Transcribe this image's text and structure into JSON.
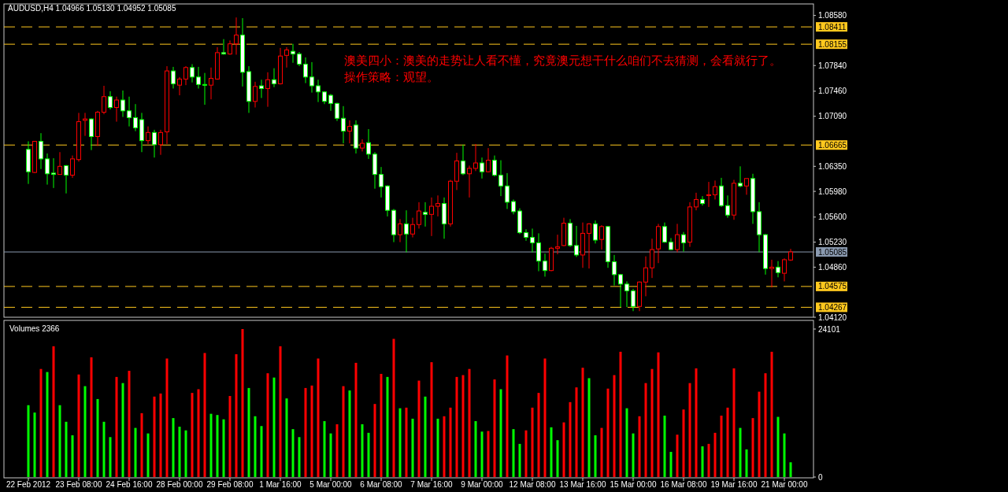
{
  "chart_data": [
    {
      "type": "candlestick",
      "title": "AUDUSD,H4 1.04966 1.05130 1.04952 1.05085",
      "annotations": [
        "澳美四小：澳美的走势让人看不懂，究竟澳元想干什么咱们不去猜测，会看就行了。",
        "操作策略：观望。"
      ],
      "categories": [
        null,
        null,
        null,
        null,
        null,
        null,
        null,
        null,
        null,
        null,
        null,
        null,
        null,
        null,
        null,
        null,
        null,
        null,
        null,
        null,
        null,
        null,
        null,
        null,
        null,
        null,
        null,
        null,
        null,
        null,
        null,
        null,
        null,
        null,
        null,
        null,
        null,
        null,
        null,
        null,
        null,
        null,
        null,
        null,
        null,
        null,
        null,
        null,
        null,
        null,
        null,
        null,
        null,
        null,
        null,
        null,
        null,
        null,
        null,
        null,
        null,
        null,
        null,
        null,
        null,
        null,
        null,
        null,
        null,
        null,
        null,
        null,
        null,
        null,
        null,
        null,
        null,
        null,
        null,
        null,
        null,
        null,
        null,
        null,
        null,
        null,
        null,
        null,
        null,
        null,
        null,
        null,
        null,
        null,
        null,
        null,
        null,
        null,
        null,
        null,
        null,
        null,
        null,
        null,
        null,
        null,
        null,
        null,
        null,
        null,
        null,
        null,
        null,
        null,
        null,
        null,
        null,
        null,
        null,
        null,
        null,
        null
      ],
      "tick_labels": "y",
      "ylim": [
        1.0412,
        1.0875
      ],
      "yticks": [
        {
          "value": 1.0858,
          "label": "1.08580"
        },
        {
          "value": 1.0784,
          "label": "1.07840"
        },
        {
          "value": 1.0746,
          "label": "1.07460"
        },
        {
          "value": 1.0709,
          "label": "1.07090"
        },
        {
          "value": 1.0635,
          "label": "1.06350"
        },
        {
          "value": 1.0598,
          "label": "1.05980"
        },
        {
          "value": 1.056,
          "label": "1.05600"
        },
        {
          "value": 1.0523,
          "label": "1.05230"
        },
        {
          "value": 1.0486,
          "label": "1.04860"
        },
        {
          "value": 1.0412,
          "label": "1.04120"
        }
      ],
      "ref_lines": [
        {
          "axis": "y",
          "value": 1.08411,
          "label": "1.08411",
          "color": "#ffc81e",
          "line_style": "dashed"
        },
        {
          "axis": "y",
          "value": 1.08155,
          "label": "1.08155",
          "color": "#ffc81e",
          "line_style": "dashed"
        },
        {
          "axis": "y",
          "value": 1.06665,
          "label": "1.06665",
          "color": "#ffc81e",
          "line_style": "dashed"
        },
        {
          "axis": "y",
          "value": 1.05085,
          "label": "1.05085",
          "color": "#8a9ab0",
          "line_style": "solid"
        },
        {
          "axis": "y",
          "value": 1.04575,
          "label": "1.04575",
          "color": "#ffc81e",
          "line_style": "dashed"
        },
        {
          "axis": "y",
          "value": 1.04267,
          "label": "1.04267",
          "color": "#ffc81e",
          "line_style": "dashed"
        }
      ],
      "ohlc": [
        [
          1.066,
          1.0672,
          1.0609,
          1.0627
        ],
        [
          1.0626,
          1.0672,
          1.0625,
          1.0672
        ],
        [
          1.0672,
          1.0684,
          1.0631,
          1.0646
        ],
        [
          1.0646,
          1.0654,
          1.0608,
          1.0624
        ],
        [
          1.0625,
          1.0647,
          1.0603,
          1.0623
        ],
        [
          1.0623,
          1.0656,
          1.0623,
          1.0635
        ],
        [
          1.0636,
          1.0637,
          1.0595,
          1.0622
        ],
        [
          1.0622,
          1.0651,
          1.0618,
          1.0646
        ],
        [
          1.0645,
          1.0714,
          1.0642,
          1.0701
        ],
        [
          1.0703,
          1.0714,
          1.068,
          1.0705
        ],
        [
          1.0705,
          1.0706,
          1.0659,
          1.0679
        ],
        [
          1.0679,
          1.0717,
          1.0665,
          1.0715
        ],
        [
          1.0715,
          1.0754,
          1.0712,
          1.0738
        ],
        [
          1.0738,
          1.0746,
          1.0719,
          1.0722
        ],
        [
          1.0722,
          1.0738,
          1.0701,
          1.0733
        ],
        [
          1.0733,
          1.0747,
          1.0708,
          1.0717
        ],
        [
          1.0717,
          1.0738,
          1.0694,
          1.0707
        ],
        [
          1.0707,
          1.0727,
          1.0687,
          1.0692
        ],
        [
          1.0704,
          1.0714,
          1.0656,
          1.0673
        ],
        [
          1.0673,
          1.0694,
          1.0668,
          1.0685
        ],
        [
          1.0685,
          1.0689,
          1.0648,
          1.0667
        ],
        [
          1.0667,
          1.0689,
          1.0652,
          1.0685
        ],
        [
          1.0686,
          1.0783,
          1.0668,
          1.0776
        ],
        [
          1.0776,
          1.0782,
          1.075,
          1.0757
        ],
        [
          1.0755,
          1.0767,
          1.074,
          1.0764
        ],
        [
          1.0764,
          1.0783,
          1.0755,
          1.0781
        ],
        [
          1.0781,
          1.0786,
          1.0759,
          1.0767
        ],
        [
          1.0767,
          1.0782,
          1.075,
          1.0756
        ],
        [
          1.0756,
          1.0773,
          1.0726,
          1.0755
        ],
        [
          1.0755,
          1.0781,
          1.0734,
          1.0765
        ],
        [
          1.0764,
          1.0811,
          1.0763,
          1.0803
        ],
        [
          1.0803,
          1.0823,
          1.08,
          1.0801
        ],
        [
          1.0801,
          1.0821,
          1.08,
          1.0816
        ],
        [
          1.0816,
          1.0855,
          1.08,
          1.0829
        ],
        [
          1.0829,
          1.0854,
          1.0753,
          1.0774
        ],
        [
          1.0775,
          1.0783,
          1.0714,
          1.0731
        ],
        [
          1.0731,
          1.076,
          1.0722,
          1.0753
        ],
        [
          1.0754,
          1.0763,
          1.0736,
          1.075
        ],
        [
          1.075,
          1.0774,
          1.0723,
          1.0763
        ],
        [
          1.0763,
          1.078,
          1.0752,
          1.0757
        ],
        [
          1.0757,
          1.081,
          1.0756,
          1.0798
        ],
        [
          1.0799,
          1.0811,
          1.0781,
          1.0807
        ],
        [
          1.0805,
          1.0816,
          1.0788,
          1.0801
        ],
        [
          1.0801,
          1.0804,
          1.0783,
          1.0786
        ],
        [
          1.0786,
          1.0796,
          1.0758,
          1.0767
        ],
        [
          1.0767,
          1.0789,
          1.0744,
          1.0754
        ],
        [
          1.0754,
          1.0763,
          1.073,
          1.0745
        ],
        [
          1.0745,
          1.0746,
          1.0727,
          1.0731
        ],
        [
          1.074,
          1.0742,
          1.0717,
          1.0728
        ],
        [
          1.0728,
          1.0729,
          1.0702,
          1.0706
        ],
        [
          1.0706,
          1.0724,
          1.0669,
          1.0687
        ],
        [
          1.0687,
          1.0703,
          1.0669,
          1.0694
        ],
        [
          1.0696,
          1.0703,
          1.0654,
          1.0662
        ],
        [
          1.0662,
          1.0675,
          1.0657,
          1.0669
        ],
        [
          1.067,
          1.069,
          1.0646,
          1.0653
        ],
        [
          1.0653,
          1.0656,
          1.0602,
          1.0623
        ],
        [
          1.0623,
          1.0634,
          1.0589,
          1.0605
        ],
        [
          1.0606,
          1.0607,
          1.0561,
          1.057
        ],
        [
          1.057,
          1.0572,
          1.0523,
          1.0534
        ],
        [
          1.0534,
          1.0557,
          1.0523,
          1.055
        ],
        [
          1.055,
          1.057,
          1.0508,
          1.0535
        ],
        [
          1.0535,
          1.0559,
          1.053,
          1.0549
        ],
        [
          1.0549,
          1.0582,
          1.0543,
          1.0569
        ],
        [
          1.0567,
          1.0582,
          1.0546,
          1.0564
        ],
        [
          1.0564,
          1.0589,
          1.0532,
          1.0576
        ],
        [
          1.0576,
          1.0592,
          1.0561,
          1.058
        ],
        [
          1.058,
          1.0589,
          1.0528,
          1.055
        ],
        [
          1.055,
          1.0615,
          1.0546,
          1.0613
        ],
        [
          1.0613,
          1.0655,
          1.06,
          1.0643
        ],
        [
          1.0643,
          1.0667,
          1.0622,
          1.0624
        ],
        [
          1.0624,
          1.0636,
          1.0589,
          1.0632
        ],
        [
          1.0632,
          1.0668,
          1.0628,
          1.064
        ],
        [
          1.064,
          1.0648,
          1.0617,
          1.0627
        ],
        [
          1.0627,
          1.0662,
          1.0626,
          1.0644
        ],
        [
          1.0644,
          1.0651,
          1.062,
          1.0622
        ],
        [
          1.0622,
          1.0644,
          1.0591,
          1.0606
        ],
        [
          1.0606,
          1.0625,
          1.0572,
          1.0582
        ],
        [
          1.0583,
          1.0586,
          1.0564,
          1.0568
        ],
        [
          1.0569,
          1.0573,
          1.0535,
          1.0537
        ],
        [
          1.0537,
          1.0542,
          1.0525,
          1.053
        ],
        [
          1.053,
          1.0543,
          1.0508,
          1.0522
        ],
        [
          1.0522,
          1.0536,
          1.048,
          1.0495
        ],
        [
          1.0495,
          1.0506,
          1.0472,
          1.0481
        ],
        [
          1.0481,
          1.0516,
          1.048,
          1.0514
        ],
        [
          1.0514,
          1.0534,
          1.0505,
          1.0516
        ],
        [
          1.0518,
          1.0559,
          1.0517,
          1.0551
        ],
        [
          1.0551,
          1.0557,
          1.0516,
          1.0518
        ],
        [
          1.0518,
          1.0547,
          1.0501,
          1.0504
        ],
        [
          1.0504,
          1.0552,
          1.0485,
          1.0536
        ],
        [
          1.0536,
          1.0551,
          1.0484,
          1.055
        ],
        [
          1.055,
          1.0555,
          1.0521,
          1.0526
        ],
        [
          1.0527,
          1.0548,
          1.0512,
          1.0546
        ],
        [
          1.0546,
          1.0547,
          1.0485,
          1.0494
        ],
        [
          1.0494,
          1.0504,
          1.0459,
          1.0475
        ],
        [
          1.0475,
          1.0476,
          1.0427,
          1.0461
        ],
        [
          1.0461,
          1.0465,
          1.0427,
          1.0451
        ],
        [
          1.0451,
          1.0454,
          1.0421,
          1.0428
        ],
        [
          1.0428,
          1.0465,
          1.0421,
          1.0464
        ],
        [
          1.0464,
          1.0502,
          1.0443,
          1.0485
        ],
        [
          1.0485,
          1.0528,
          1.047,
          1.0512
        ],
        [
          1.0513,
          1.055,
          1.0492,
          1.0546
        ],
        [
          1.0546,
          1.0552,
          1.0522,
          1.0523
        ],
        [
          1.0523,
          1.0529,
          1.0511,
          1.0512
        ],
        [
          1.0512,
          1.055,
          1.0508,
          1.0534
        ],
        [
          1.0534,
          1.0538,
          1.0509,
          1.0522
        ],
        [
          1.0523,
          1.0582,
          1.0516,
          1.0575
        ],
        [
          1.0575,
          1.0596,
          1.057,
          1.0586
        ],
        [
          1.0586,
          1.0591,
          1.0577,
          1.058
        ],
        [
          1.0592,
          1.0612,
          1.0575,
          1.0593
        ],
        [
          1.0593,
          1.0614,
          1.0586,
          1.0605
        ],
        [
          1.0606,
          1.0618,
          1.0575,
          1.0577
        ],
        [
          1.0577,
          1.0592,
          1.0559,
          1.0563
        ],
        [
          1.0563,
          1.0615,
          1.0556,
          1.061
        ],
        [
          1.061,
          1.0635,
          1.0604,
          1.0606
        ],
        [
          1.0606,
          1.0617,
          1.0593,
          1.0617
        ],
        [
          1.0617,
          1.0624,
          1.055,
          1.0568
        ],
        [
          1.0568,
          1.0582,
          1.0508,
          1.0534
        ],
        [
          1.0534,
          1.0535,
          1.0475,
          1.0484
        ],
        [
          1.0484,
          1.0497,
          1.0456,
          1.0486
        ],
        [
          1.0486,
          1.0495,
          1.0471,
          1.0478
        ],
        [
          1.0477,
          1.0499,
          1.0465,
          1.0497
        ],
        [
          1.04966,
          1.0513,
          1.04952,
          1.05085
        ]
      ],
      "colors": [
        "#00ff00",
        "#ff0000",
        "#00ff00",
        "#00ff00",
        "#00ff00",
        "#ff0000",
        "#00ff00",
        "#ff0000",
        "#ff0000",
        "#ff0000",
        "#00ff00",
        "#ff0000",
        "#ff0000",
        "#00ff00",
        "#ff0000",
        "#00ff00",
        "#00ff00",
        "#00ff00",
        "#00ff00",
        "#ff0000",
        "#00ff00",
        "#ff0000",
        "#ff0000",
        "#00ff00",
        "#ff0000",
        "#ff0000",
        "#00ff00",
        "#00ff00",
        "#00ff00",
        "#ff0000",
        "#ff0000",
        "#00ff00",
        "#ff0000",
        "#ff0000",
        "#00ff00",
        "#00ff00",
        "#ff0000",
        "#00ff00",
        "#ff0000",
        "#00ff00",
        "#ff0000",
        "#ff0000",
        "#00ff00",
        "#00ff00",
        "#00ff00",
        "#00ff00",
        "#00ff00",
        "#00ff00",
        "#00ff00",
        "#00ff00",
        "#00ff00",
        "#ff0000",
        "#00ff00",
        "#ff0000",
        "#00ff00",
        "#00ff00",
        "#00ff00",
        "#00ff00",
        "#00ff00",
        "#ff0000",
        "#00ff00",
        "#ff0000",
        "#ff0000",
        "#00ff00",
        "#ff0000",
        "#ff0000",
        "#00ff00",
        "#ff0000",
        "#ff0000",
        "#00ff00",
        "#ff0000",
        "#ff0000",
        "#00ff00",
        "#ff0000",
        "#00ff00",
        "#00ff00",
        "#00ff00",
        "#00ff00",
        "#00ff00",
        "#00ff00",
        "#00ff00",
        "#00ff00",
        "#00ff00",
        "#ff0000",
        "#ff0000",
        "#ff0000",
        "#00ff00",
        "#00ff00",
        "#ff0000",
        "#ff0000",
        "#00ff00",
        "#ff0000",
        "#00ff00",
        "#00ff00",
        "#00ff00",
        "#00ff00",
        "#00ff00",
        "#ff0000",
        "#ff0000",
        "#ff0000",
        "#ff0000",
        "#00ff00",
        "#00ff00",
        "#ff0000",
        "#00ff00",
        "#ff0000",
        "#ff0000",
        "#00ff00",
        "#ff0000",
        "#ff0000",
        "#00ff00",
        "#00ff00",
        "#ff0000",
        "#00ff00",
        "#ff0000",
        "#00ff00",
        "#00ff00",
        "#00ff00",
        "#ff0000",
        "#00ff00",
        "#ff0000",
        "#ff0000"
      ]
    },
    {
      "type": "bar",
      "title": "Volumes 2366",
      "categories": [
        "22 Feb 2012",
        null,
        null,
        null,
        null,
        null,
        null,
        null,
        "23 Feb 08:00",
        null,
        null,
        null,
        null,
        null,
        null,
        null,
        "24 Feb 16:00",
        null,
        null,
        null,
        null,
        null,
        null,
        null,
        "28 Feb 00:00",
        null,
        null,
        null,
        null,
        null,
        null,
        null,
        "29 Feb 08:00",
        null,
        null,
        null,
        null,
        null,
        null,
        null,
        "1 Mar 16:00",
        null,
        null,
        null,
        null,
        null,
        null,
        null,
        "5 Mar 00:00",
        null,
        null,
        null,
        null,
        null,
        null,
        null,
        "6 Mar 08:00",
        null,
        null,
        null,
        null,
        null,
        null,
        null,
        "7 Mar 16:00",
        null,
        null,
        null,
        null,
        null,
        null,
        null,
        "9 Mar 00:00",
        null,
        null,
        null,
        null,
        null,
        null,
        null,
        "12 Mar 08:00",
        null,
        null,
        null,
        null,
        null,
        null,
        null,
        "13 Mar 16:00",
        null,
        null,
        null,
        null,
        null,
        null,
        null,
        "15 Mar 00:00",
        null,
        null,
        null,
        null,
        null,
        null,
        null,
        "16 Mar 08:00",
        null,
        null,
        null,
        null,
        null,
        null,
        null,
        "19 Mar 16:00",
        null,
        null,
        null,
        null,
        null,
        null,
        null,
        "21 Mar 00:00",
        null
      ],
      "ylim": [
        0,
        24101
      ],
      "yticks": [
        0,
        24101
      ],
      "values": [
        11700,
        10500,
        17600,
        17100,
        21300,
        11700,
        9000,
        6800,
        16700,
        14800,
        19500,
        12700,
        9000,
        6500,
        16300,
        15300,
        17300,
        8000,
        10400,
        7100,
        13100,
        13600,
        19300,
        9600,
        8200,
        7600,
        13700,
        14300,
        20200,
        10300,
        10100,
        9400,
        13200,
        20000,
        24101,
        14500,
        9900,
        8300,
        16900,
        16200,
        21300,
        12800,
        7800,
        6500,
        14500,
        14900,
        19300,
        9100,
        7100,
        8600,
        14800,
        14100,
        18600,
        8600,
        7200,
        11900,
        16800,
        16300,
        22500,
        11200,
        11300,
        9500,
        15700,
        13100,
        18700,
        9500,
        9900,
        11300,
        16300,
        16600,
        17600,
        9100,
        7400,
        7500,
        15900,
        14300,
        19800,
        7800,
        5400,
        7600,
        11300,
        13700,
        19300,
        8100,
        6000,
        8900,
        12200,
        14600,
        17800,
        16100,
        6800,
        8000,
        14400,
        16600,
        20400,
        11200,
        7100,
        9900,
        15300,
        17600,
        20300,
        10000,
        4100,
        6900,
        11000,
        15300,
        17700,
        5000,
        5400,
        7200,
        10000,
        11300,
        17700,
        8000,
        4500,
        9600,
        13900,
        16900,
        20400,
        9800,
        7100,
        2400
      ],
      "colors": [
        "#00ff00",
        "#00ff00",
        "#ff0000",
        "#00ff00",
        "#ff0000",
        "#00ff00",
        "#00ff00",
        "#00ff00",
        "#ff0000",
        "#00ff00",
        "#ff0000",
        "#00ff00",
        "#00ff00",
        "#00ff00",
        "#ff0000",
        "#00ff00",
        "#ff0000",
        "#00ff00",
        "#ff0000",
        "#00ff00",
        "#ff0000",
        "#ff0000",
        "#ff0000",
        "#00ff00",
        "#00ff00",
        "#00ff00",
        "#ff0000",
        "#ff0000",
        "#ff0000",
        "#00ff00",
        "#00ff00",
        "#00ff00",
        "#ff0000",
        "#ff0000",
        "#ff0000",
        "#00ff00",
        "#00ff00",
        "#00ff00",
        "#ff0000",
        "#00ff00",
        "#ff0000",
        "#00ff00",
        "#00ff00",
        "#00ff00",
        "#ff0000",
        "#ff0000",
        "#ff0000",
        "#00ff00",
        "#00ff00",
        "#ff0000",
        "#ff0000",
        "#00ff00",
        "#ff0000",
        "#00ff00",
        "#00ff00",
        "#ff0000",
        "#ff0000",
        "#00ff00",
        "#ff0000",
        "#00ff00",
        "#ff0000",
        "#00ff00",
        "#ff0000",
        "#00ff00",
        "#ff0000",
        "#00ff00",
        "#ff0000",
        "#ff0000",
        "#ff0000",
        "#ff0000",
        "#ff0000",
        "#00ff00",
        "#00ff00",
        "#ff0000",
        "#ff0000",
        "#00ff00",
        "#ff0000",
        "#00ff00",
        "#00ff00",
        "#ff0000",
        "#ff0000",
        "#ff0000",
        "#ff0000",
        "#00ff00",
        "#00ff00",
        "#ff0000",
        "#ff0000",
        "#ff0000",
        "#ff0000",
        "#00ff00",
        "#00ff00",
        "#ff0000",
        "#ff0000",
        "#ff0000",
        "#ff0000",
        "#00ff00",
        "#00ff00",
        "#ff0000",
        "#ff0000",
        "#ff0000",
        "#ff0000",
        "#00ff00",
        "#00ff00",
        "#ff0000",
        "#ff0000",
        "#ff0000",
        "#ff0000",
        "#00ff00",
        "#ff0000",
        "#ff0000",
        "#ff0000",
        "#ff0000",
        "#ff0000",
        "#00ff00",
        "#00ff00",
        "#ff0000",
        "#ff0000",
        "#ff0000",
        "#ff0000",
        "#00ff00",
        "#00ff00",
        "#00ff00"
      ]
    }
  ]
}
